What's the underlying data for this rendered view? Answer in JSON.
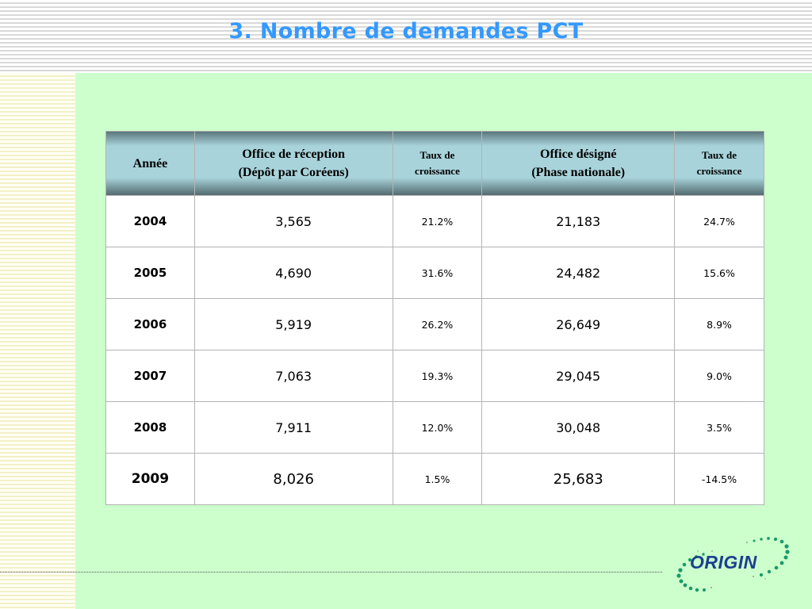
{
  "title": "3. Nombre de demandes PCT",
  "table": {
    "headers": {
      "year": "Année",
      "receiving_line1": "Office de réception",
      "receiving_line2": "(Dépôt par Coréens)",
      "growth1_line1": "Taux de",
      "growth1_line2": "croissance",
      "designated_line1": "Office désigné",
      "designated_line2": "(Phase nationale)",
      "growth2_line1": "Taux de",
      "growth2_line2": "croissance"
    },
    "rows": [
      {
        "year": "2004",
        "receiving": "3,565",
        "growth1": "21.2%",
        "designated": "21,183",
        "growth2": "24.7%"
      },
      {
        "year": "2005",
        "receiving": "4,690",
        "growth1": "31.6%",
        "designated": "24,482",
        "growth2": "15.6%"
      },
      {
        "year": "2006",
        "receiving": "5,919",
        "growth1": "26.2%",
        "designated": "26,649",
        "growth2": "8.9%"
      },
      {
        "year": "2007",
        "receiving": "7,063",
        "growth1": "19.3%",
        "designated": "29,045",
        "growth2": "9.0%"
      },
      {
        "year": "2008",
        "receiving": "7,911",
        "growth1": "12.0%",
        "designated": "30,048",
        "growth2": "3.5%"
      },
      {
        "year": "2009",
        "receiving": "8,026",
        "growth1": "1.5%",
        "designated": "25,683",
        "growth2": "-14.5%"
      }
    ]
  },
  "logo": {
    "text": "ORIGIN"
  }
}
